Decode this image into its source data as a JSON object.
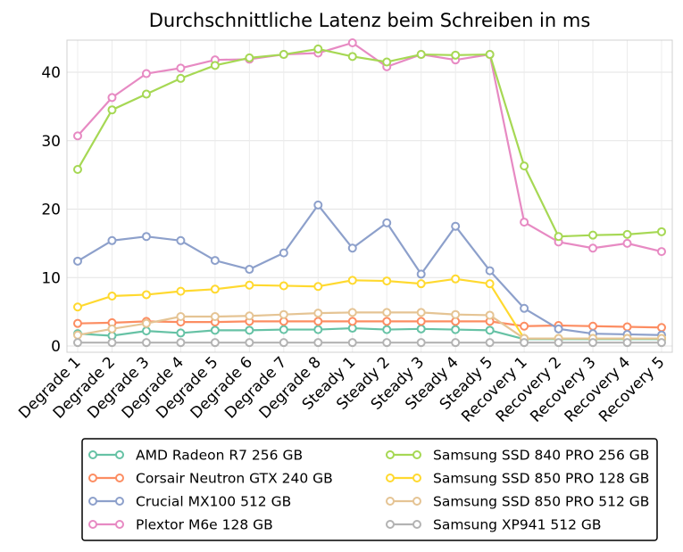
{
  "chart_data": {
    "type": "line",
    "title": "Durchschnittliche Latenz beim Schreiben in ms",
    "xlabel": "",
    "ylabel": "",
    "categories": [
      "Degrade 1",
      "Degrade 2",
      "Degrade 3",
      "Degrade 4",
      "Degrade 5",
      "Degrade 6",
      "Degrade 7",
      "Degrade 8",
      "Steady 1",
      "Steady 2",
      "Steady 3",
      "Steady 4",
      "Steady 5",
      "Recovery 1",
      "Recovery 2",
      "Recovery 3",
      "Recovery 4",
      "Recovery 5"
    ],
    "ylim": [
      0,
      46
    ],
    "yticks": [
      0,
      10,
      20,
      30,
      40
    ],
    "grid": true,
    "legend_placement": "bottom",
    "series": [
      {
        "name": "AMD Radeon R7 256 GB",
        "color": "#66c2a5",
        "values": [
          1.8,
          1.5,
          2.2,
          1.9,
          2.3,
          2.3,
          2.4,
          2.4,
          2.6,
          2.4,
          2.5,
          2.4,
          2.3,
          1.0,
          1.0,
          1.0,
          1.0,
          1.0
        ]
      },
      {
        "name": "Corsair Neutron GTX 240 GB",
        "color": "#fc8d62",
        "values": [
          3.3,
          3.4,
          3.6,
          3.5,
          3.5,
          3.6,
          3.6,
          3.6,
          3.6,
          3.6,
          3.6,
          3.6,
          3.6,
          2.9,
          3.0,
          2.9,
          2.8,
          2.7
        ]
      },
      {
        "name": "Crucial MX100 512 GB",
        "color": "#8da0cb",
        "values": [
          12.4,
          15.4,
          16.0,
          15.4,
          12.5,
          11.2,
          13.6,
          20.6,
          14.3,
          18.0,
          10.5,
          17.5,
          11.0,
          5.5,
          2.5,
          1.8,
          1.7,
          1.6
        ]
      },
      {
        "name": "Plextor M6e 128 GB",
        "color": "#e78ac3",
        "values": [
          30.7,
          36.3,
          39.8,
          40.6,
          41.8,
          41.9,
          42.6,
          42.8,
          44.3,
          40.8,
          42.6,
          41.8,
          42.6,
          18.1,
          15.2,
          14.3,
          15.0,
          13.8
        ]
      },
      {
        "name": "Samsung SSD 840 PRO 256 GB",
        "color": "#a6d854",
        "values": [
          25.8,
          34.5,
          36.8,
          39.1,
          41.0,
          42.1,
          42.6,
          43.4,
          42.3,
          41.5,
          42.6,
          42.5,
          42.6,
          26.3,
          16.0,
          16.2,
          16.3,
          16.7
        ]
      },
      {
        "name": "Samsung SSD 850 PRO 128 GB",
        "color": "#ffd92f",
        "values": [
          5.7,
          7.3,
          7.5,
          8.0,
          8.3,
          8.9,
          8.8,
          8.7,
          9.6,
          9.5,
          9.1,
          9.8,
          9.1,
          1.1,
          1.1,
          1.1,
          1.1,
          1.1
        ]
      },
      {
        "name": "Samsung SSD 850 PRO 512 GB",
        "color": "#e5c494",
        "values": [
          1.6,
          2.5,
          3.3,
          4.3,
          4.3,
          4.4,
          4.6,
          4.8,
          4.9,
          4.9,
          4.9,
          4.6,
          4.5,
          1.1,
          1.1,
          1.1,
          1.1,
          1.1
        ]
      },
      {
        "name": "Samsung XP941 512 GB",
        "color": "#b3b3b3",
        "values": [
          0.5,
          0.5,
          0.5,
          0.5,
          0.5,
          0.5,
          0.5,
          0.5,
          0.5,
          0.5,
          0.5,
          0.5,
          0.5,
          0.5,
          0.5,
          0.5,
          0.5,
          0.5
        ]
      }
    ]
  }
}
